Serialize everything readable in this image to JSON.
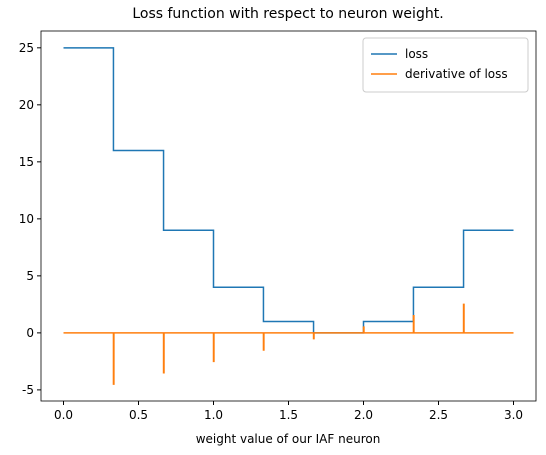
{
  "chart_data": {
    "type": "line",
    "title": "Loss function with respect to neuron weight.",
    "x_label": "weight value of our IAF neuron",
    "xlim": [
      -0.15,
      3.15
    ],
    "ylim": [
      -5.975,
      26.475
    ],
    "xticks": [
      {
        "value": 0,
        "label": "0.0"
      },
      0.5,
      {
        "value": 1,
        "label": "1.0"
      },
      1.5,
      {
        "value": 2,
        "label": "2.0"
      },
      2.5,
      {
        "value": 3,
        "label": "3.0"
      }
    ],
    "yticks": [
      -5,
      0,
      5,
      10,
      15,
      20,
      25
    ],
    "legend": "upper right",
    "series": [
      {
        "name": "loss",
        "color": "#1f77b4",
        "x": [
          0,
          0.333,
          0.333,
          0.667,
          0.667,
          1,
          1,
          1.333,
          1.333,
          1.667,
          1.667,
          2,
          2,
          2.333,
          2.333,
          2.667,
          2.667,
          3
        ],
        "values": [
          25,
          25,
          16,
          16,
          9,
          9,
          4,
          4,
          1,
          1,
          0,
          0,
          1,
          1,
          4,
          4,
          9,
          9
        ]
      },
      {
        "name": "derivative of loss",
        "color": "#ff7f0e",
        "x": [
          0,
          0.333,
          0.333,
          0.336,
          0.336,
          0.667,
          0.667,
          0.67,
          0.67,
          1,
          1,
          1.003,
          1.003,
          1.333,
          1.333,
          1.336,
          1.336,
          1.667,
          1.667,
          1.67,
          1.67,
          2,
          2,
          2.003,
          2.003,
          2.333,
          2.333,
          2.336,
          2.336,
          2.667,
          2.667,
          2.67,
          2.67,
          3
        ],
        "values": [
          0,
          0,
          -4.5,
          -4.5,
          0,
          0,
          -3.5,
          -3.5,
          0,
          0,
          -2.5,
          -2.5,
          0,
          0,
          -1.5,
          -1.5,
          0,
          0,
          -0.5,
          -0.5,
          0,
          0,
          0.5,
          0.5,
          0,
          0,
          1.5,
          1.5,
          0,
          0,
          2.5,
          2.5,
          0,
          0
        ]
      }
    ]
  }
}
